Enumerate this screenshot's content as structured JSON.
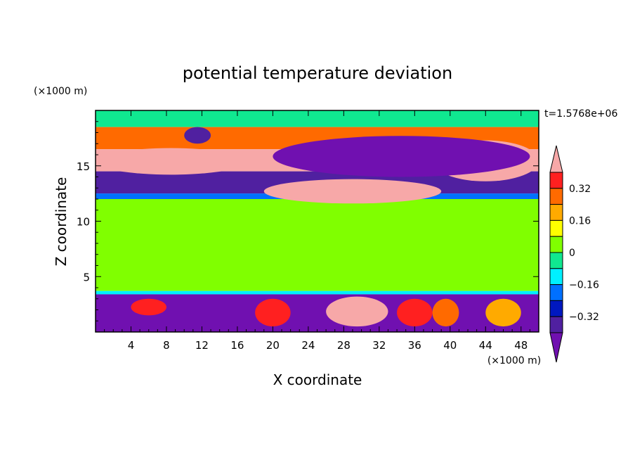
{
  "chart_data": {
    "type": "heatmap",
    "title": "potential temperature deviation",
    "xlabel": "X coordinate",
    "ylabel": "Z coordinate",
    "x_unit": "(×1000 m)",
    "y_unit": "(×1000 m)",
    "time_label": "t=1.5768e+06",
    "xlim": [
      0,
      50
    ],
    "ylim": [
      0,
      20
    ],
    "x_ticks": [
      4,
      8,
      12,
      16,
      20,
      24,
      28,
      32,
      36,
      40,
      44,
      48
    ],
    "y_ticks": [
      5,
      10,
      15
    ],
    "colorbar": {
      "levels": [
        -0.4,
        -0.32,
        -0.24,
        -0.16,
        -0.08,
        0,
        0.08,
        0.16,
        0.24,
        0.32,
        0.4
      ],
      "labels": [
        "0.32",
        "0.16",
        "0",
        "−0.16",
        "−0.32"
      ],
      "label_values": [
        0.32,
        0.16,
        0,
        -0.16,
        -0.32
      ],
      "colors_top_to_bottom": [
        "#f7a8a8",
        "#ff2020",
        "#ff6a00",
        "#ffaa00",
        "#ffff00",
        "#80ff00",
        "#10e890",
        "#00f0ff",
        "#0070ff",
        "#0018c0",
        "#5020a0",
        "#7010b0"
      ]
    },
    "palette": {
      "pink": "#f7a8a8",
      "red": "#ff2020",
      "orange": "#ff6a00",
      "amber": "#ffaa00",
      "yellow": "#ffff00",
      "lime": "#80ff00",
      "green": "#10e890",
      "cyan": "#00f0ff",
      "blue": "#0070ff",
      "navy": "#0018c0",
      "indigo": "#5020a0",
      "purple": "#7010b0"
    },
    "bands": [
      {
        "z": [
          18.5,
          20
        ],
        "level": 0
      },
      {
        "z": [
          16.5,
          18.5
        ],
        "level": 0.24
      },
      {
        "z": [
          14.5,
          16.5
        ],
        "level": 0.4
      },
      {
        "z": [
          12.5,
          14.5
        ],
        "level": -0.32
      },
      {
        "z": [
          12,
          12.5
        ],
        "level": -0.16
      },
      {
        "z": [
          3.7,
          12
        ],
        "level": 0.04
      },
      {
        "z": [
          3.4,
          3.7
        ],
        "level": -0.1
      },
      {
        "z": [
          0,
          3.4
        ],
        "level": -0.4
      }
    ],
    "features": [
      {
        "x": [
          0,
          17
        ],
        "z": [
          14.2,
          16.6
        ],
        "level": 0.4
      },
      {
        "x": [
          19,
          39
        ],
        "z": [
          11.6,
          13.8
        ],
        "level": 0.4
      },
      {
        "x": [
          38,
          50
        ],
        "z": [
          13.6,
          17.3
        ],
        "level": 0.4
      },
      {
        "x": [
          20,
          49
        ],
        "z": [
          14,
          17.7
        ],
        "level": -0.4
      },
      {
        "x": [
          10,
          13
        ],
        "z": [
          17,
          18.5
        ],
        "level": -0.32
      },
      {
        "x": [
          26,
          33
        ],
        "z": [
          0.5,
          3.2
        ],
        "level": 0.4
      },
      {
        "x": [
          4,
          8
        ],
        "z": [
          1.5,
          3
        ],
        "level": 0.32
      },
      {
        "x": [
          18,
          22
        ],
        "z": [
          0.5,
          3
        ],
        "level": 0.32
      },
      {
        "x": [
          34,
          38
        ],
        "z": [
          0.5,
          3
        ],
        "level": 0.32
      },
      {
        "x": [
          38,
          41
        ],
        "z": [
          0.5,
          3
        ],
        "level": 0.24
      },
      {
        "x": [
          44,
          48
        ],
        "z": [
          0.5,
          3
        ],
        "level": 0.16
      }
    ]
  }
}
